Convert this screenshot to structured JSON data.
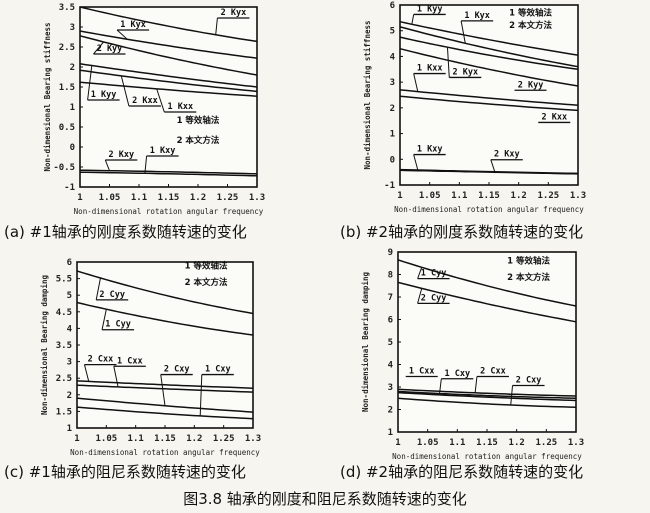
{
  "figure_title": "图3.8 轴承的刚度和阻尼系数随转速的变化",
  "chart_data": [
    {
      "type": "line",
      "caption": "(a) #1轴承的刚度系数随转速的变化",
      "xlabel": "Non-dimensional rotation angular frequency",
      "ylabel": "Non-dimensional Bearing stiffness",
      "xlim": [
        1,
        1.3
      ],
      "ylim": [
        -1,
        3.5
      ],
      "xticks": [
        "1",
        "1.05",
        "1.1",
        "1.15",
        "1.2",
        "1.25",
        "1.3"
      ],
      "yticks": [
        "-1",
        "-0.5",
        "0",
        "0.5",
        "1",
        "1.5",
        "2",
        "2.5",
        "3",
        "3.5"
      ],
      "grid": false,
      "legend": {
        "placement": "right",
        "entries": [
          "1 等效轴法",
          "2 本文方法"
        ],
        "y": [
          0.6,
          0.1
        ],
        "x": 1.2
      },
      "x": [
        1,
        1.15,
        1.3
      ],
      "series": [
        {
          "name": "2 Kyx",
          "values": [
            3.5,
            3.02,
            2.64
          ]
        },
        {
          "name": "1 Kyx",
          "values": [
            2.9,
            2.53,
            2.22
          ]
        },
        {
          "name": "2 Kyy",
          "values": [
            2.78,
            2.24,
            1.8
          ]
        },
        {
          "name": "1 Kyy",
          "values": [
            2.08,
            1.77,
            1.5
          ]
        },
        {
          "name": "2 Kxx",
          "values": [
            1.92,
            1.63,
            1.39
          ]
        },
        {
          "name": "1 Kxx",
          "values": [
            1.62,
            1.43,
            1.27
          ]
        },
        {
          "name": "2 Kxy",
          "values": [
            -0.58,
            -0.62,
            -0.67
          ]
        },
        {
          "name": "1 Kxy",
          "values": [
            -0.63,
            -0.67,
            -0.72
          ]
        }
      ],
      "annotations": [
        {
          "text": "2 Kyx",
          "x": 1.26,
          "y": 3.3,
          "to": 1.23
        },
        {
          "text": "1 Kyx",
          "x": 1.09,
          "y": 3.0,
          "to": 1.08
        },
        {
          "text": "2 Kyy",
          "x": 1.05,
          "y": 2.4,
          "to": 1.04
        },
        {
          "text": "1 Kyy",
          "x": 1.04,
          "y": 1.25,
          "to": 1.02
        },
        {
          "text": "2 Kxx",
          "x": 1.11,
          "y": 1.1,
          "to": 1.07
        },
        {
          "text": "1 Kxx",
          "x": 1.17,
          "y": 0.95,
          "to": 1.13
        },
        {
          "text": "2 Kxy",
          "x": 1.07,
          "y": -0.25,
          "to": 1.05
        },
        {
          "text": "1 Kxy",
          "x": 1.14,
          "y": -0.15,
          "to": 1.11
        }
      ]
    },
    {
      "type": "line",
      "caption": "(b) #2轴承的刚度系数随转速的变化",
      "xlabel": "Non-dimensional rotation angular frequency",
      "ylabel": "Non-dimensional Bearing stiffness",
      "xlim": [
        1,
        1.3
      ],
      "ylim": [
        -1,
        6
      ],
      "xticks": [
        "1",
        "1.05",
        "1.1",
        "1.15",
        "1.2",
        "1.25",
        "1.3"
      ],
      "yticks": [
        "-1",
        "0",
        "1",
        "2",
        "3",
        "4",
        "5",
        "6"
      ],
      "grid": false,
      "legend": {
        "placement": "top-right",
        "entries": [
          "1 等效轴法",
          "2 本文方法"
        ],
        "y": [
          5.6,
          5.1
        ],
        "x": 1.22
      },
      "x": [
        1,
        1.15,
        1.3
      ],
      "series": [
        {
          "name": "1 Kyy",
          "values": [
            5.35,
            4.65,
            4.05
          ]
        },
        {
          "name": "1 Kyx",
          "values": [
            5.15,
            4.3,
            3.6
          ]
        },
        {
          "name": "2 Kyx",
          "values": [
            4.75,
            4.05,
            3.5
          ]
        },
        {
          "name": "2 Kyy",
          "values": [
            4.3,
            3.5,
            2.85
          ]
        },
        {
          "name": "1 Kxx",
          "values": [
            2.7,
            2.38,
            2.1
          ]
        },
        {
          "name": "2 Kxx",
          "values": [
            2.45,
            2.15,
            1.9
          ]
        },
        {
          "name": "1 Kxy",
          "values": [
            -0.4,
            -0.48,
            -0.55
          ]
        },
        {
          "name": "2 Kxy",
          "values": [
            -0.43,
            -0.5,
            -0.57
          ]
        }
      ],
      "annotations": [
        {
          "text": "1 Kyy",
          "x": 1.05,
          "y": 5.75,
          "to": 1.02
        },
        {
          "text": "1 Kyx",
          "x": 1.13,
          "y": 5.5,
          "to": 1.11
        },
        {
          "text": "2 Kyx",
          "x": 1.11,
          "y": 3.3,
          "to": 1.08
        },
        {
          "text": "2 Kyy",
          "x": 1.22,
          "y": 2.8
        },
        {
          "text": "1 Kxx",
          "x": 1.05,
          "y": 3.45,
          "to": 1.03
        },
        {
          "text": "2 Kxx",
          "x": 1.26,
          "y": 1.55
        },
        {
          "text": "1 Kxy",
          "x": 1.05,
          "y": 0.3,
          "to": 1.03
        },
        {
          "text": "2 Kxy",
          "x": 1.18,
          "y": 0.1,
          "to": 1.16
        }
      ]
    },
    {
      "type": "line",
      "caption": "(c) #1轴承的阻尼系数随转速的变化",
      "xlabel": "Non-dimensional rotation angular frequency",
      "ylabel": "Non-dimensional Bearing damping",
      "xlim": [
        1,
        1.3
      ],
      "ylim": [
        1,
        6
      ],
      "xticks": [
        "1",
        "1.05",
        "1.1",
        "1.15",
        "1.2",
        "1.25",
        "1.3"
      ],
      "yticks": [
        "1",
        "1.5",
        "2",
        "2.5",
        "3",
        "3.5",
        "4",
        "4.5",
        "5",
        "5.5",
        "6"
      ],
      "grid": false,
      "legend": {
        "placement": "top-right",
        "entries": [
          "1 等效轴法",
          "2 本文方法"
        ],
        "y": [
          5.8,
          5.3
        ],
        "x": 1.22
      },
      "x": [
        1,
        1.15,
        1.3
      ],
      "series": [
        {
          "name": "2 Cyy",
          "values": [
            5.73,
            5.0,
            4.45
          ]
        },
        {
          "name": "1 Cyy",
          "values": [
            4.78,
            4.22,
            3.8
          ]
        },
        {
          "name": "2 Cxx",
          "values": [
            2.42,
            2.3,
            2.2
          ]
        },
        {
          "name": "1 Cxx",
          "values": [
            2.29,
            2.18,
            2.08
          ]
        },
        {
          "name": "2 Cxy",
          "values": [
            1.9,
            1.67,
            1.48
          ]
        },
        {
          "name": "1 Cxy",
          "values": [
            1.63,
            1.43,
            1.28
          ]
        }
      ],
      "annotations": [
        {
          "text": "2 Cyy",
          "x": 1.06,
          "y": 4.95,
          "to": 1.04
        },
        {
          "text": "1 Cyy",
          "x": 1.07,
          "y": 4.05,
          "to": 1.05
        },
        {
          "text": "2 Cxx",
          "x": 1.04,
          "y": 3.0,
          "to": 1.02
        },
        {
          "text": "1 Cxx",
          "x": 1.09,
          "y": 2.95,
          "to": 1.07
        },
        {
          "text": "2 Cxy",
          "x": 1.17,
          "y": 2.7,
          "to": 1.15
        },
        {
          "text": "1 Cxy",
          "x": 1.24,
          "y": 2.7,
          "to": 1.21
        }
      ]
    },
    {
      "type": "line",
      "caption": "(d) #2轴承的阻尼系数随转速的变化",
      "xlabel": "Non-dimensional rotation angular frequency",
      "ylabel": "Non-dimensional Bearing damping",
      "xlim": [
        1,
        1.3
      ],
      "ylim": [
        1,
        9
      ],
      "xticks": [
        "1",
        "1.05",
        "1.1",
        "1.15",
        "1.2",
        "1.25",
        "1.3"
      ],
      "yticks": [
        "1",
        "2",
        "3",
        "4",
        "5",
        "6",
        "7",
        "8",
        "9"
      ],
      "grid": false,
      "legend": {
        "placement": "top-right",
        "entries": [
          "1 等效轴法",
          "2 本文方法"
        ],
        "y": [
          8.5,
          7.75
        ],
        "x": 1.22
      },
      "x": [
        1,
        1.15,
        1.3
      ],
      "series": [
        {
          "name": "1 Cyy",
          "values": [
            8.65,
            7.5,
            6.6
          ]
        },
        {
          "name": "2 Cyy",
          "values": [
            7.65,
            6.7,
            5.9
          ]
        },
        {
          "name": "2 Cxx",
          "values": [
            2.9,
            2.72,
            2.6
          ]
        },
        {
          "name": "1 Cxy",
          "values": [
            2.8,
            2.62,
            2.5
          ]
        },
        {
          "name": "1 Cxx",
          "values": [
            2.75,
            2.55,
            2.4
          ]
        },
        {
          "name": "2 Cxy",
          "values": [
            2.5,
            2.25,
            2.1
          ]
        }
      ],
      "annotations": [
        {
          "text": "1 Cyy",
          "x": 1.06,
          "y": 7.95,
          "to": 1.04
        },
        {
          "text": "2 Cyy",
          "x": 1.06,
          "y": 6.85,
          "to": 1.04
        },
        {
          "text": "1 Cxx",
          "x": 1.04,
          "y": 3.6
        },
        {
          "text": "1 Cxy",
          "x": 1.1,
          "y": 3.5,
          "to": 1.07
        },
        {
          "text": "2 Cxx",
          "x": 1.16,
          "y": 3.6,
          "to": 1.13
        },
        {
          "text": "2 Cxy",
          "x": 1.22,
          "y": 3.2,
          "to": 1.19
        }
      ]
    }
  ]
}
